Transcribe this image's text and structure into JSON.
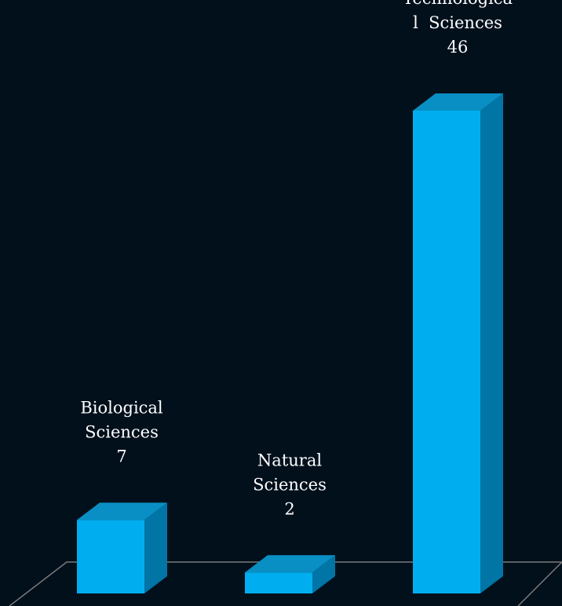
{
  "chart_data": {
    "type": "bar",
    "categories": [
      "Biological Sciences",
      "Natural Sciences",
      "Technological Sciences"
    ],
    "values": [
      7,
      2,
      46
    ],
    "data_labels": [
      [
        "Biological",
        "Sciences",
        "7"
      ],
      [
        "Natural",
        "Sciences",
        "2"
      ],
      [
        "Technologica",
        "l  Sciences",
        "46"
      ]
    ],
    "title": "",
    "xlabel": "",
    "ylabel": "",
    "grid": false,
    "legend": "none",
    "three_d": true,
    "colors": {
      "background": "#02101c",
      "bar_front": "#00aeef",
      "bar_top": "#0a8fc4",
      "bar_side": "#0075a6",
      "floor_line": "#7a7a7a",
      "label_text": "#ffffff"
    }
  }
}
